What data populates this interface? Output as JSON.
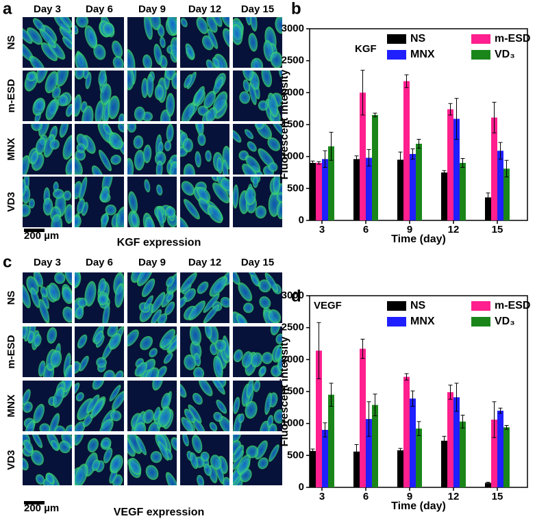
{
  "image_panels": [
    {
      "label": "a",
      "columns": [
        "Day 3",
        "Day 6",
        "Day 9",
        "Day 12",
        "Day 15"
      ],
      "rows": [
        "NS",
        "m-ESD",
        "MNX",
        "VD3"
      ],
      "scale_bar": "200 µm",
      "caption": "KGF expression"
    },
    {
      "label": "c",
      "columns": [
        "Day 3",
        "Day 6",
        "Day 9",
        "Day 12",
        "Day 15"
      ],
      "rows": [
        "NS",
        "m-ESD",
        "MNX",
        "VD3"
      ],
      "scale_bar": "200 µm",
      "caption": "VEGF expression"
    }
  ],
  "chart_data": [
    {
      "type": "bar",
      "label": "b",
      "annotation": "KGF",
      "x_label": "Time (day)",
      "y_label": "Fluorescent intensity",
      "categories": [
        "3",
        "6",
        "9",
        "12",
        "15"
      ],
      "ylim": [
        0,
        3000
      ],
      "yticks": [
        0,
        500,
        1000,
        1500,
        2000,
        2500,
        3000
      ],
      "series": [
        {
          "name": "NS",
          "color": "#000000",
          "values": [
            900,
            960,
            950,
            750,
            360
          ],
          "errors": [
            30,
            50,
            120,
            30,
            70
          ]
        },
        {
          "name": "m-ESD",
          "color": "#ff1f8e",
          "values": [
            900,
            2000,
            2180,
            1740,
            1610
          ],
          "errors": [
            20,
            350,
            100,
            90,
            240
          ]
        },
        {
          "name": "MNX",
          "color": "#1f1fff",
          "values": [
            960,
            980,
            1040,
            1590,
            1090
          ],
          "errors": [
            130,
            130,
            80,
            320,
            130
          ]
        },
        {
          "name": "VD₃",
          "color": "#1a861a",
          "values": [
            1160,
            1650,
            1200,
            900,
            810
          ],
          "errors": [
            220,
            30,
            70,
            70,
            130
          ]
        }
      ]
    },
    {
      "type": "bar",
      "label": "d",
      "annotation": "VEGF",
      "x_label": "Time (day)",
      "y_label": "Fluorescent intensity",
      "categories": [
        "3",
        "6",
        "9",
        "12",
        "15"
      ],
      "ylim": [
        0,
        3000
      ],
      "yticks": [
        0,
        500,
        1000,
        1500,
        2000,
        2500,
        3000
      ],
      "series": [
        {
          "name": "NS",
          "color": "#000000",
          "values": [
            570,
            560,
            580,
            730,
            70
          ],
          "errors": [
            30,
            110,
            30,
            70,
            10
          ]
        },
        {
          "name": "m-ESD",
          "color": "#ff1f8e",
          "values": [
            2140,
            2170,
            1730,
            1490,
            1060
          ],
          "errors": [
            440,
            150,
            50,
            110,
            280
          ]
        },
        {
          "name": "MNX",
          "color": "#1f1fff",
          "values": [
            900,
            1070,
            1390,
            1410,
            1200
          ],
          "errors": [
            110,
            270,
            120,
            220,
            40
          ]
        },
        {
          "name": "VD₃",
          "color": "#1a861a",
          "values": [
            1450,
            1290,
            920,
            1030,
            940
          ],
          "errors": [
            180,
            170,
            110,
            100,
            30
          ]
        }
      ]
    }
  ]
}
